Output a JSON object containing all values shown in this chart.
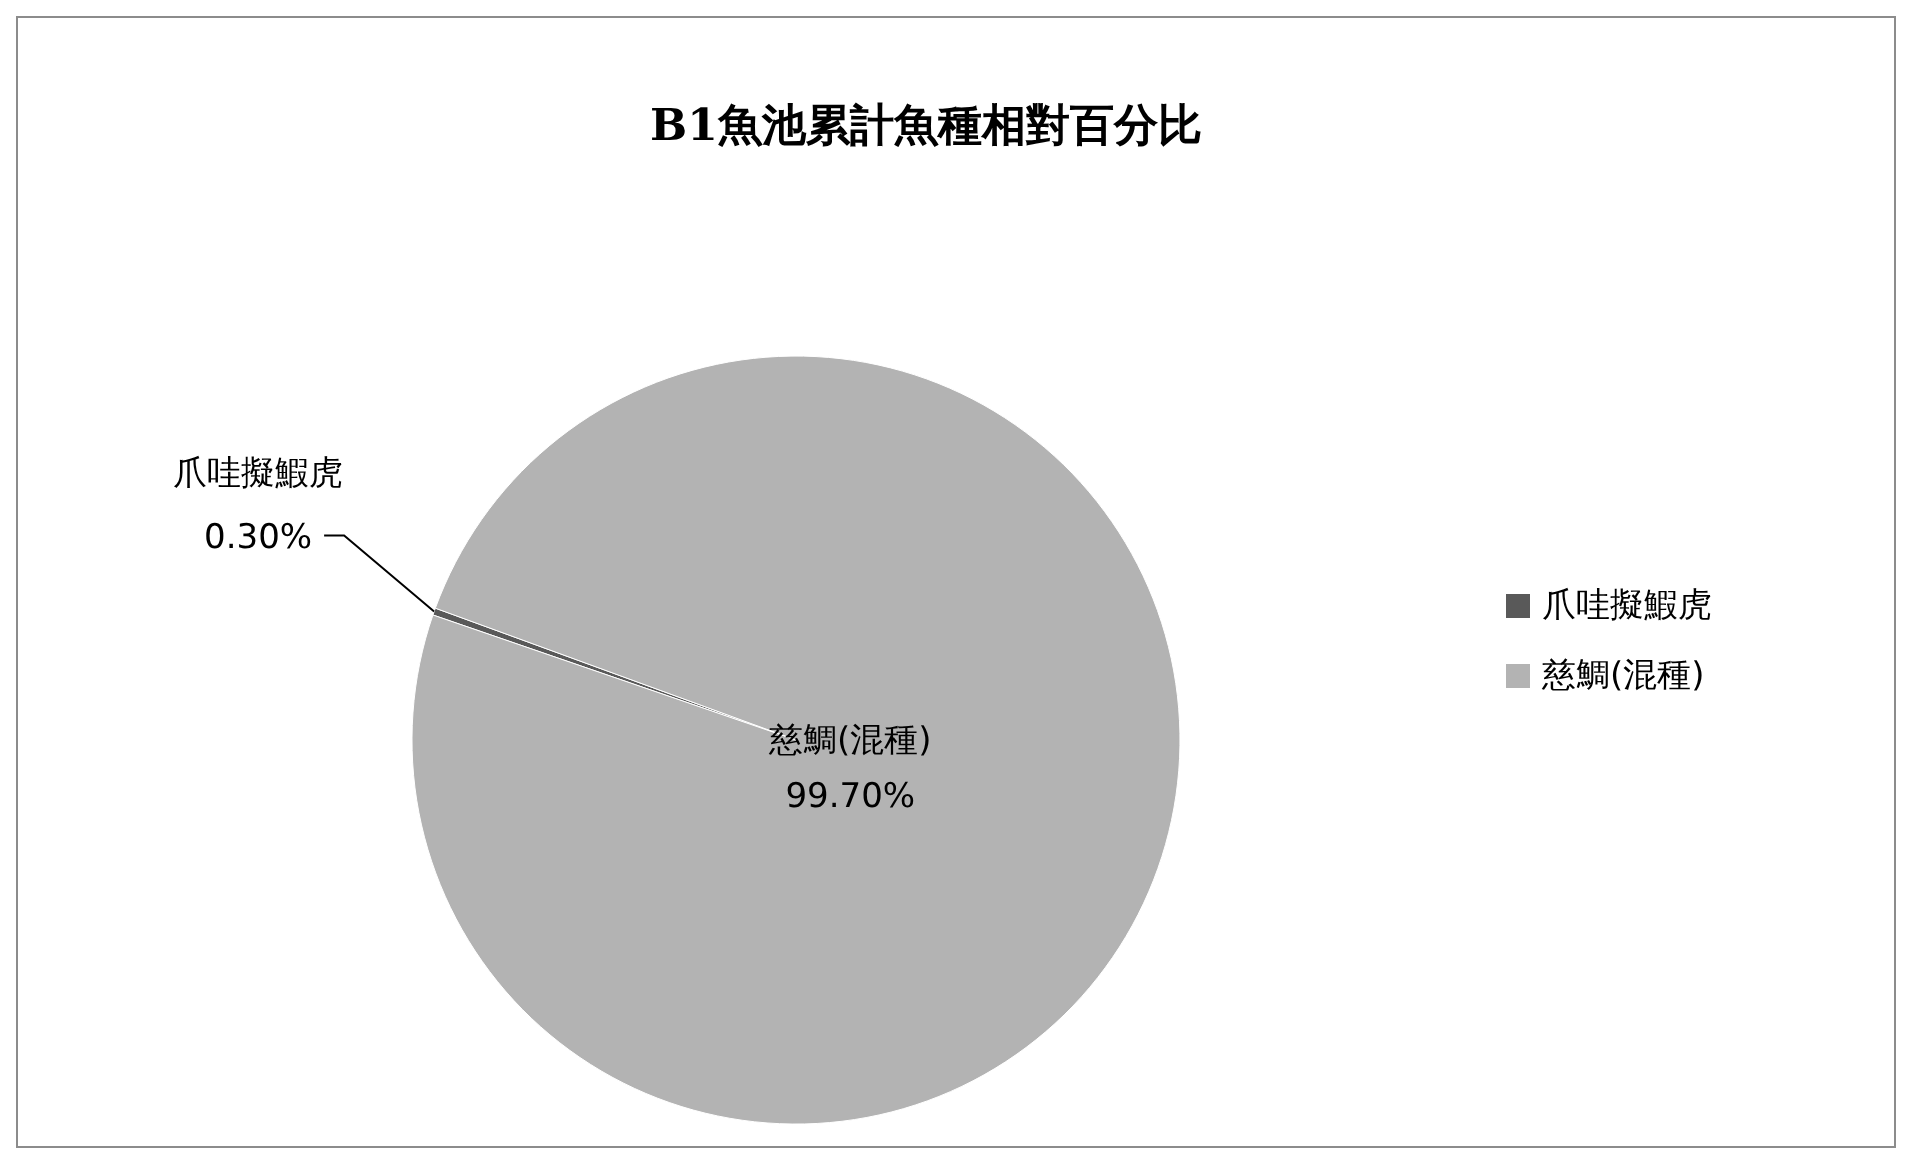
{
  "chart_data": {
    "type": "pie",
    "title": "B1魚池累計魚種相對百分比",
    "categories": [
      "爪哇擬鰕虎",
      "慈鯛(混種)"
    ],
    "values": [
      0.3,
      99.7
    ],
    "colors": [
      "#595959",
      "#b3b3b3"
    ],
    "value_labels": [
      "0.30%",
      "99.70%"
    ],
    "legend": "right"
  }
}
